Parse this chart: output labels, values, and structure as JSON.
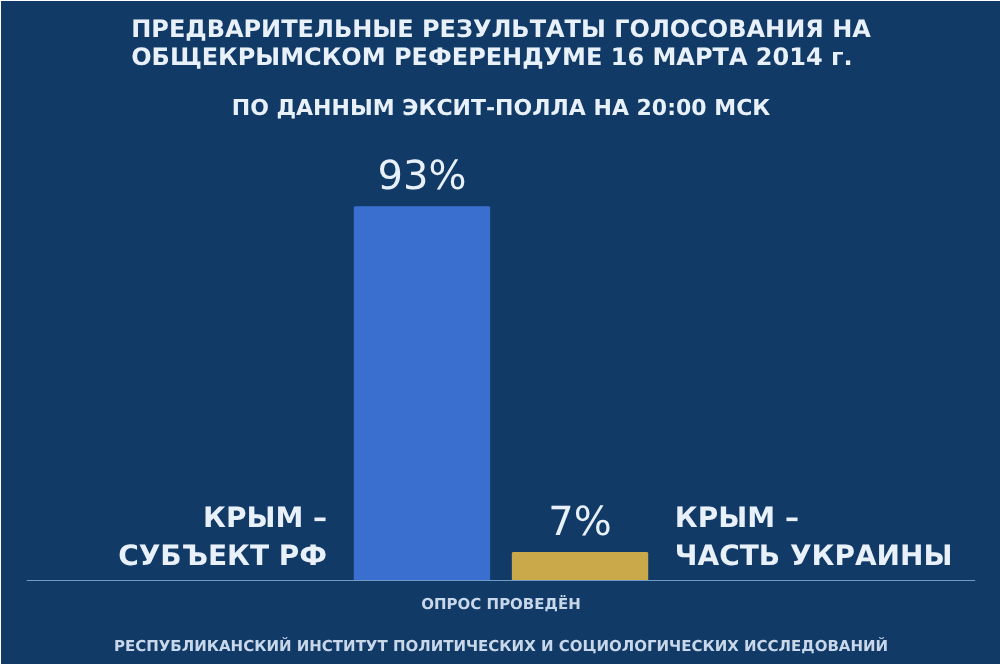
{
  "chart_data": {
    "type": "bar",
    "title": "ПРЕДВАРИТЕЛЬНЫЕ РЕЗУЛЬТАТЫ ГОЛОСОВАНИЯ НА ОБЩЕКРЫМСКОМ РЕФЕРЕНДУМЕ 16 МАРТА 2014 г.",
    "subtitle": "ПО ДАННЫМ ЭКСИТ-ПОЛЛА НА 20:00 МСК",
    "categories": [
      "КРЫМ – СУБЪЕКТ РФ",
      "КРЫМ – ЧАСТЬ УКРАИНЫ"
    ],
    "values": [
      93,
      7
    ],
    "colors": [
      "#3a6fd0",
      "#c9a94a"
    ],
    "value_labels": [
      "93%",
      "7%"
    ],
    "annotations": [
      "ОПРОС ПРОВЕДЁН",
      "РЕСПУБЛИКАНСКИЙ ИНСТИТУТ ПОЛИТИЧЕСКИХ И СОЦИОЛОГИЧЕСКИХ ИССЛЕДОВАНИЙ"
    ]
  }
}
